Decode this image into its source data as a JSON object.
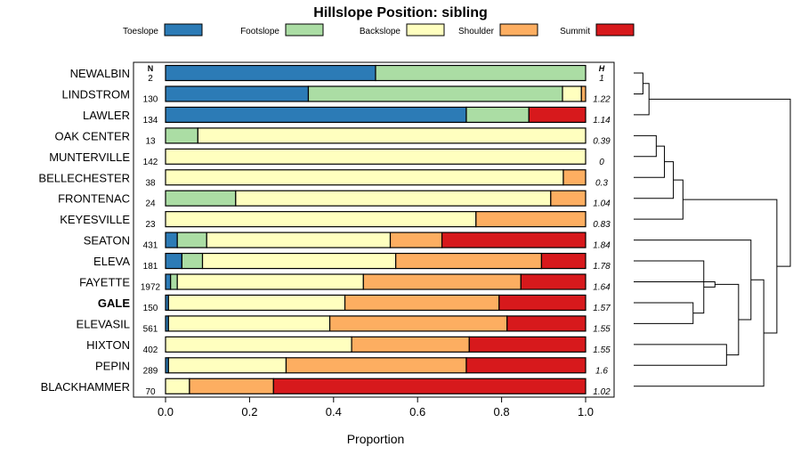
{
  "chart_data": {
    "type": "bar",
    "orientation": "horizontal",
    "stacked": "proportion",
    "title": "Hillslope Position: sibling",
    "xlabel": "Proportion",
    "xlim": [
      0,
      1
    ],
    "x_ticks": [
      0,
      0.2,
      0.4,
      0.6,
      0.8,
      1
    ],
    "x_tick_labels": [
      "0.0",
      "0.2",
      "0.4",
      "0.6",
      "0.8",
      "1.0"
    ],
    "n_header": "N",
    "h_header": "H",
    "highlight": "GALE",
    "legend_position": "top",
    "colors": {
      "Toeslope": "#2c7bb6",
      "Footslope": "#abdda4",
      "Backslope": "#ffffbf",
      "Shoulder": "#fdae61",
      "Summit": "#d7191c"
    },
    "legend": [
      "Toeslope",
      "Footslope",
      "Backslope",
      "Shoulder",
      "Summit"
    ],
    "rows": [
      {
        "name": "NEWALBIN",
        "n": "2",
        "h": "1",
        "values": [
          0.5,
          0.5,
          0,
          0,
          0
        ]
      },
      {
        "name": "LINDSTROM",
        "n": "130",
        "h": "1.22",
        "values": [
          0.34,
          0.605,
          0.045,
          0.01,
          0
        ]
      },
      {
        "name": "LAWLER",
        "n": "134",
        "h": "1.14",
        "values": [
          0.716,
          0.149,
          0,
          0,
          0.135
        ]
      },
      {
        "name": "OAK CENTER",
        "n": "13",
        "h": "0.39",
        "values": [
          0,
          0.077,
          0.923,
          0,
          0
        ]
      },
      {
        "name": "MUNTERVILLE",
        "n": "142",
        "h": "0",
        "values": [
          0,
          0,
          1,
          0,
          0
        ]
      },
      {
        "name": "BELLECHESTER",
        "n": "38",
        "h": "0.3",
        "values": [
          0,
          0,
          0.947,
          0.053,
          0
        ]
      },
      {
        "name": "FRONTENAC",
        "n": "24",
        "h": "1.04",
        "values": [
          0,
          0.167,
          0.75,
          0.083,
          0
        ]
      },
      {
        "name": "KEYESVILLE",
        "n": "23",
        "h": "0.83",
        "values": [
          0,
          0,
          0.739,
          0.261,
          0
        ]
      },
      {
        "name": "SEATON",
        "n": "431",
        "h": "1.84",
        "values": [
          0.028,
          0.07,
          0.437,
          0.123,
          0.342
        ]
      },
      {
        "name": "ELEVA",
        "n": "181",
        "h": "1.78",
        "values": [
          0.039,
          0.049,
          0.46,
          0.347,
          0.105
        ]
      },
      {
        "name": "FAYETTE",
        "n": "1972",
        "h": "1.64",
        "values": [
          0.012,
          0.016,
          0.443,
          0.375,
          0.154
        ]
      },
      {
        "name": "GALE",
        "n": "150",
        "h": "1.57",
        "values": [
          0.007,
          0,
          0.42,
          0.367,
          0.206
        ]
      },
      {
        "name": "ELEVASIL",
        "n": "561",
        "h": "1.55",
        "values": [
          0.007,
          0,
          0.384,
          0.422,
          0.187
        ]
      },
      {
        "name": "HIXTON",
        "n": "402",
        "h": "1.55",
        "values": [
          0,
          0,
          0.443,
          0.28,
          0.277
        ]
      },
      {
        "name": "PEPIN",
        "n": "289",
        "h": "1.6",
        "values": [
          0.007,
          0,
          0.28,
          0.429,
          0.284
        ]
      },
      {
        "name": "BLACKHAMMER",
        "n": "70",
        "h": "1.02",
        "values": [
          0,
          0,
          0.057,
          0.2,
          0.743
        ]
      }
    ],
    "dendrogram": [
      [
        0,
        1
      ],
      [
        16,
        2
      ],
      [
        3,
        4
      ],
      [
        18,
        5
      ],
      [
        19,
        6
      ],
      [
        20,
        7
      ],
      [
        11,
        12
      ],
      [
        22,
        9
      ],
      [
        23,
        10
      ],
      [
        13,
        14
      ],
      [
        24,
        25
      ],
      [
        26,
        8
      ],
      [
        27,
        15
      ],
      [
        21,
        28
      ],
      [
        17,
        29
      ]
    ]
  }
}
